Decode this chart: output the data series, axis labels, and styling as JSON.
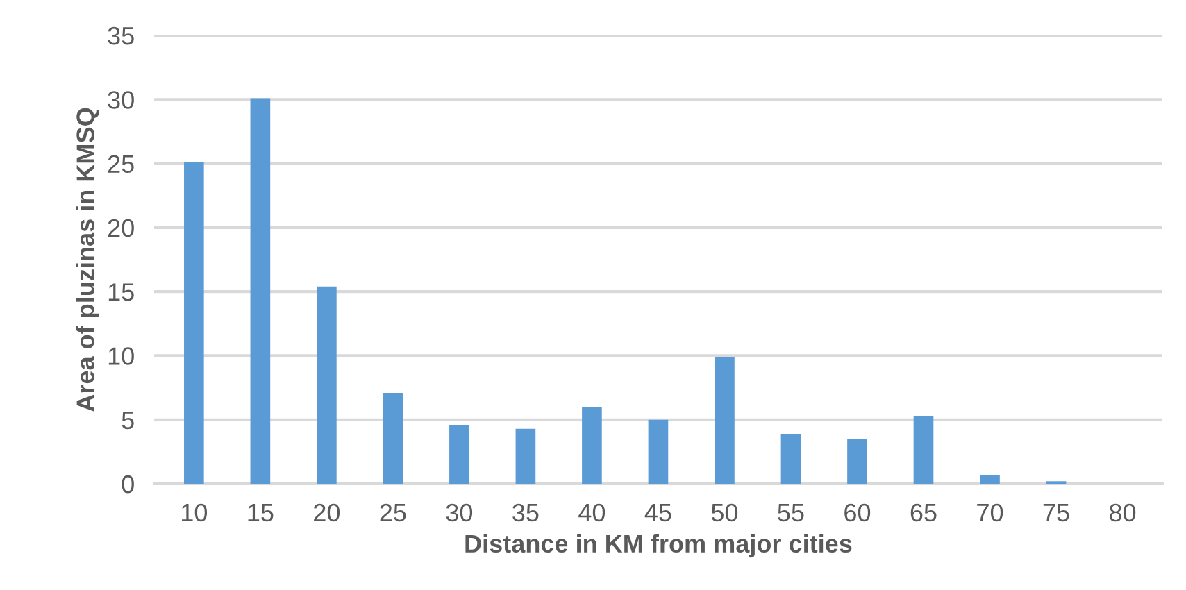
{
  "chart_data": {
    "type": "bar",
    "xlabel": "Distance in KM from major cities",
    "ylabel": "Area of pluzinas in KMSQ",
    "categories": [
      "10",
      "15",
      "20",
      "25",
      "30",
      "35",
      "40",
      "45",
      "50",
      "55",
      "60",
      "65",
      "70",
      "75",
      "80"
    ],
    "values": [
      25.1,
      30.1,
      15.4,
      7.1,
      4.6,
      4.3,
      6.0,
      5.0,
      9.9,
      3.9,
      3.5,
      5.3,
      0.7,
      0.2,
      0
    ],
    "color": "#5b9bd5",
    "ylim": [
      0,
      35
    ],
    "yticks": [
      0,
      5,
      10,
      15,
      20,
      25,
      30,
      35
    ],
    "grid": "y"
  }
}
